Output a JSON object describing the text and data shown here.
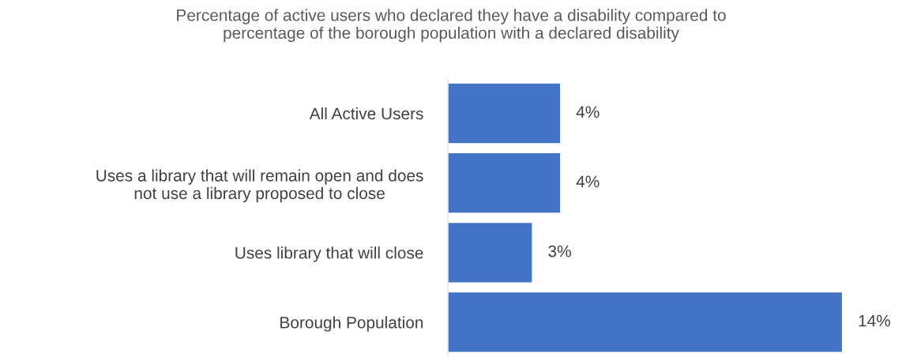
{
  "chart_data": {
    "type": "bar",
    "orientation": "horizontal",
    "title": "Percentage of active users who declared they have a disability compared to\npercentage of the borough population with a declared disability",
    "categories": [
      "All Active Users",
      "Uses a library that will remain open and does\nnot use a library proposed to close",
      "Uses library that will close",
      "Borough Population"
    ],
    "values": [
      4,
      4,
      3,
      14
    ],
    "value_labels": [
      "4%",
      "4%",
      "3%",
      "14%"
    ],
    "color": "#4472c4",
    "grid": false
  }
}
